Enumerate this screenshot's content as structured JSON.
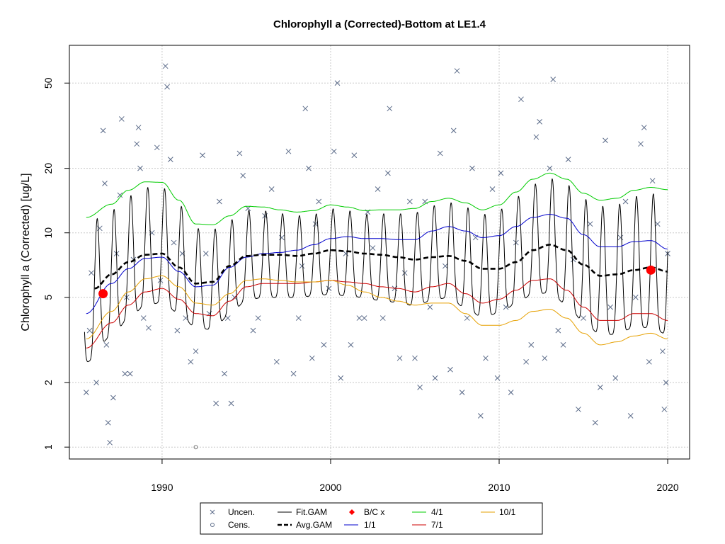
{
  "chart_data": {
    "type": "line",
    "title": "Chlorophyll a (Corrected)-Bottom at LE1.4",
    "ylabel": "Chlorophyll a (Corrected) [ug/L]",
    "xlabel": "",
    "xlim": [
      1984.5,
      2021.3
    ],
    "ylim": [
      0.88,
      75
    ],
    "ylog": true,
    "grid": true,
    "x_ticks": [
      1990,
      2000,
      2010,
      2020
    ],
    "y_ticks": [
      1,
      2,
      5,
      10,
      20,
      50
    ],
    "legend_position": "bottom-center",
    "legend": [
      {
        "key": "uncen",
        "label": "Uncen."
      },
      {
        "key": "cens",
        "label": "Cens."
      },
      {
        "key": "fit",
        "label": "Fit.GAM"
      },
      {
        "key": "avg",
        "label": "Avg.GAM"
      },
      {
        "key": "bc",
        "label": "B/C x"
      },
      {
        "key": "p11",
        "label": "1/1"
      },
      {
        "key": "p41",
        "label": "4/1"
      },
      {
        "key": "p71",
        "label": "7/1"
      },
      {
        "key": "p101",
        "label": "10/1"
      }
    ],
    "colors": {
      "uncen": "#5a6a88",
      "fit": "#000000",
      "avg": "#000000",
      "bc": "#ff0000",
      "p11": "#0000cc",
      "p41": "#00cc00",
      "p71": "#cc0000",
      "p101": "#e6a000"
    },
    "series": [
      {
        "key": "avg",
        "name": "Avg.GAM",
        "x": [
          1986,
          1987,
          1988,
          1989,
          1990,
          1991,
          1992,
          1993,
          1994,
          1995,
          1996,
          1997,
          1998,
          1999,
          2000,
          2001,
          2002,
          2003,
          2004,
          2005,
          2006,
          2007,
          2008,
          2009,
          2010,
          2011,
          2012,
          2013,
          2014,
          2015,
          2016,
          2017,
          2018,
          2019,
          2020
        ],
        "y": [
          5.5,
          6.4,
          7.3,
          7.9,
          8.0,
          6.9,
          5.8,
          5.9,
          7.0,
          7.8,
          7.9,
          7.9,
          7.8,
          8.0,
          8.3,
          8.2,
          8.0,
          7.9,
          7.7,
          7.5,
          7.7,
          7.8,
          7.4,
          6.8,
          6.8,
          7.3,
          8.3,
          8.8,
          8.3,
          7.1,
          6.3,
          6.4,
          6.7,
          6.9,
          6.6
        ]
      },
      {
        "key": "p11",
        "name": "1/1",
        "x": [
          1985.5,
          1987,
          1988,
          1989,
          1990,
          1991,
          1992,
          1993,
          1994,
          1995,
          1996,
          1997,
          1998,
          1999,
          2000,
          2001,
          2002,
          2003,
          2004,
          2005,
          2006,
          2007,
          2008,
          2009,
          2010,
          2011,
          2012,
          2013,
          2014,
          2015,
          2016,
          2017,
          2018,
          2019,
          2020
        ],
        "y": [
          4.2,
          5.8,
          6.8,
          7.6,
          7.7,
          6.6,
          5.6,
          5.7,
          6.9,
          7.7,
          8.0,
          8.1,
          8.3,
          8.8,
          9.4,
          9.6,
          9.4,
          9.4,
          9.3,
          9.3,
          10.2,
          10.7,
          10.2,
          9.5,
          9.7,
          10.7,
          11.8,
          12.2,
          11.7,
          9.8,
          8.6,
          8.6,
          9.1,
          9.2,
          8.4
        ]
      },
      {
        "key": "p41",
        "name": "4/1",
        "x": [
          1985.5,
          1987,
          1988,
          1989,
          1990,
          1991,
          1992,
          1993,
          1994,
          1995,
          1996,
          1997,
          1998,
          1999,
          2000,
          2001,
          2002,
          2003,
          2004,
          2005,
          2006,
          2007,
          2008,
          2009,
          2010,
          2011,
          2012,
          2013,
          2014,
          2015,
          2016,
          2017,
          2018,
          2019,
          2020
        ],
        "y": [
          11.8,
          13.6,
          15.8,
          17.3,
          17.2,
          14.2,
          11.0,
          10.9,
          12.0,
          13.3,
          13.2,
          12.8,
          12.5,
          12.7,
          13.5,
          13.2,
          12.7,
          12.8,
          12.8,
          13.0,
          14.0,
          14.5,
          13.8,
          12.8,
          13.5,
          15.5,
          17.8,
          19.0,
          17.8,
          15.3,
          14.2,
          14.5,
          15.8,
          16.3,
          15.9
        ]
      },
      {
        "key": "p71",
        "name": "7/1",
        "x": [
          1985.5,
          1987,
          1988,
          1989,
          1990,
          1991,
          1992,
          1993,
          1994,
          1995,
          1996,
          1997,
          1998,
          1999,
          2000,
          2001,
          2002,
          2003,
          2004,
          2005,
          2006,
          2007,
          2008,
          2009,
          2010,
          2011,
          2012,
          2013,
          2014,
          2015,
          2016,
          2017,
          2018,
          2019,
          2020
        ],
        "y": [
          2.9,
          3.8,
          4.6,
          5.3,
          5.5,
          4.9,
          4.2,
          4.1,
          4.8,
          5.6,
          5.8,
          5.8,
          5.8,
          5.9,
          6.0,
          5.9,
          5.8,
          5.6,
          5.5,
          5.3,
          5.6,
          5.8,
          5.2,
          4.7,
          4.9,
          5.4,
          6.0,
          6.1,
          5.4,
          4.5,
          3.9,
          3.9,
          4.2,
          4.2,
          3.9
        ]
      },
      {
        "key": "p101",
        "name": "10/1",
        "x": [
          1985.5,
          1987,
          1988,
          1989,
          1990,
          1991,
          1992,
          1993,
          1994,
          1995,
          1996,
          1997,
          1998,
          1999,
          2000,
          2001,
          2002,
          2003,
          2004,
          2005,
          2006,
          2007,
          2008,
          2009,
          2010,
          2011,
          2012,
          2013,
          2014,
          2015,
          2016,
          2017,
          2018,
          2019,
          2020
        ],
        "y": [
          3.2,
          4.3,
          5.3,
          6.1,
          6.3,
          5.6,
          4.7,
          4.6,
          5.2,
          6.0,
          6.1,
          6.0,
          5.9,
          5.9,
          6.0,
          5.7,
          5.3,
          5.0,
          4.8,
          4.6,
          4.7,
          4.7,
          4.2,
          3.7,
          3.7,
          3.9,
          4.3,
          4.4,
          4.0,
          3.4,
          3.0,
          3.1,
          3.3,
          3.4,
          3.2
        ]
      }
    ],
    "fit_gam": {
      "name": "Fit.GAM",
      "x_start": 1985.4,
      "x_end": 2020.0,
      "step": 0.02,
      "peak_phase": 0.15,
      "trough_phase": 0.65,
      "upper_envelope_key": "p41",
      "lower_envelope_key": "p71",
      "note_source": "seasonal oscillation between 4/1 and 7/1 curves"
    },
    "bc_points": [
      {
        "x": 1986.5,
        "y": 5.2
      },
      {
        "x": 2019.0,
        "y": 6.7
      }
    ],
    "censored_points": [
      {
        "x": 1992.0,
        "y": 1.0
      }
    ],
    "uncensored_points": [
      {
        "x": 1985.5,
        "y": 1.8
      },
      {
        "x": 1985.7,
        "y": 3.5
      },
      {
        "x": 1985.8,
        "y": 6.5
      },
      {
        "x": 1986.1,
        "y": 2.0
      },
      {
        "x": 1986.3,
        "y": 10.5
      },
      {
        "x": 1986.5,
        "y": 30.0
      },
      {
        "x": 1986.6,
        "y": 17.0
      },
      {
        "x": 1986.7,
        "y": 3.0
      },
      {
        "x": 1986.8,
        "y": 1.3
      },
      {
        "x": 1986.9,
        "y": 1.05
      },
      {
        "x": 1987.1,
        "y": 1.7
      },
      {
        "x": 1987.3,
        "y": 8.0
      },
      {
        "x": 1987.5,
        "y": 15.0
      },
      {
        "x": 1987.6,
        "y": 34.0
      },
      {
        "x": 1987.8,
        "y": 2.2
      },
      {
        "x": 1987.9,
        "y": 5.0
      },
      {
        "x": 1988.1,
        "y": 2.2
      },
      {
        "x": 1988.3,
        "y": 7.5
      },
      {
        "x": 1988.5,
        "y": 26.0
      },
      {
        "x": 1988.6,
        "y": 31.0
      },
      {
        "x": 1988.7,
        "y": 20.0
      },
      {
        "x": 1988.9,
        "y": 4.0
      },
      {
        "x": 1989.2,
        "y": 3.6
      },
      {
        "x": 1989.4,
        "y": 10.0
      },
      {
        "x": 1989.7,
        "y": 25.0
      },
      {
        "x": 1989.9,
        "y": 6.0
      },
      {
        "x": 1990.2,
        "y": 60.0
      },
      {
        "x": 1990.3,
        "y": 48.0
      },
      {
        "x": 1990.5,
        "y": 22.0
      },
      {
        "x": 1990.7,
        "y": 9.0
      },
      {
        "x": 1990.9,
        "y": 3.5
      },
      {
        "x": 1991.2,
        "y": 8.0
      },
      {
        "x": 1991.4,
        "y": 4.0
      },
      {
        "x": 1991.7,
        "y": 2.5
      },
      {
        "x": 1992.0,
        "y": 2.8
      },
      {
        "x": 1992.4,
        "y": 23.0
      },
      {
        "x": 1992.6,
        "y": 8.0
      },
      {
        "x": 1992.8,
        "y": 4.2
      },
      {
        "x": 1993.2,
        "y": 1.6
      },
      {
        "x": 1993.4,
        "y": 14.0
      },
      {
        "x": 1993.7,
        "y": 2.2
      },
      {
        "x": 1993.9,
        "y": 4.0
      },
      {
        "x": 1994.1,
        "y": 1.6
      },
      {
        "x": 1994.3,
        "y": 5.0
      },
      {
        "x": 1994.6,
        "y": 23.5
      },
      {
        "x": 1994.8,
        "y": 18.5
      },
      {
        "x": 1995.1,
        "y": 13.0
      },
      {
        "x": 1995.4,
        "y": 3.5
      },
      {
        "x": 1995.7,
        "y": 4.0
      },
      {
        "x": 1996.1,
        "y": 12.0
      },
      {
        "x": 1996.5,
        "y": 16.0
      },
      {
        "x": 1996.8,
        "y": 2.5
      },
      {
        "x": 1997.1,
        "y": 9.5
      },
      {
        "x": 1997.5,
        "y": 24.0
      },
      {
        "x": 1997.8,
        "y": 2.2
      },
      {
        "x": 1998.1,
        "y": 4.0
      },
      {
        "x": 1998.3,
        "y": 7.0
      },
      {
        "x": 1998.5,
        "y": 38.0
      },
      {
        "x": 1998.7,
        "y": 20.0
      },
      {
        "x": 1998.9,
        "y": 2.6
      },
      {
        "x": 1999.1,
        "y": 11.0
      },
      {
        "x": 1999.3,
        "y": 14.0
      },
      {
        "x": 1999.6,
        "y": 3.0
      },
      {
        "x": 1999.9,
        "y": 5.5
      },
      {
        "x": 2000.2,
        "y": 24.0
      },
      {
        "x": 2000.4,
        "y": 50.0
      },
      {
        "x": 2000.6,
        "y": 2.1
      },
      {
        "x": 2000.9,
        "y": 8.0
      },
      {
        "x": 2001.2,
        "y": 3.0
      },
      {
        "x": 2001.4,
        "y": 23.0
      },
      {
        "x": 2001.7,
        "y": 4.0
      },
      {
        "x": 2002.0,
        "y": 4.0
      },
      {
        "x": 2002.2,
        "y": 12.5
      },
      {
        "x": 2002.5,
        "y": 8.5
      },
      {
        "x": 2002.8,
        "y": 16.0
      },
      {
        "x": 2003.1,
        "y": 4.0
      },
      {
        "x": 2003.4,
        "y": 19.0
      },
      {
        "x": 2003.5,
        "y": 38.0
      },
      {
        "x": 2003.8,
        "y": 5.5
      },
      {
        "x": 2004.1,
        "y": 2.6
      },
      {
        "x": 2004.4,
        "y": 6.5
      },
      {
        "x": 2004.7,
        "y": 14.0
      },
      {
        "x": 2005.0,
        "y": 2.6
      },
      {
        "x": 2005.3,
        "y": 1.9
      },
      {
        "x": 2005.6,
        "y": 14.0
      },
      {
        "x": 2005.9,
        "y": 4.5
      },
      {
        "x": 2006.2,
        "y": 2.1
      },
      {
        "x": 2006.5,
        "y": 23.5
      },
      {
        "x": 2006.8,
        "y": 7.0
      },
      {
        "x": 2007.1,
        "y": 2.3
      },
      {
        "x": 2007.3,
        "y": 30.0
      },
      {
        "x": 2007.5,
        "y": 57.0
      },
      {
        "x": 2007.8,
        "y": 1.8
      },
      {
        "x": 2008.1,
        "y": 4.0
      },
      {
        "x": 2008.4,
        "y": 20.0
      },
      {
        "x": 2008.6,
        "y": 9.5
      },
      {
        "x": 2008.9,
        "y": 1.4
      },
      {
        "x": 2009.2,
        "y": 2.6
      },
      {
        "x": 2009.6,
        "y": 16.0
      },
      {
        "x": 2009.9,
        "y": 2.1
      },
      {
        "x": 2010.1,
        "y": 19.0
      },
      {
        "x": 2010.4,
        "y": 4.5
      },
      {
        "x": 2010.7,
        "y": 1.8
      },
      {
        "x": 2011.0,
        "y": 9.0
      },
      {
        "x": 2011.3,
        "y": 42.0
      },
      {
        "x": 2011.6,
        "y": 2.5
      },
      {
        "x": 2011.9,
        "y": 3.0
      },
      {
        "x": 2012.2,
        "y": 28.0
      },
      {
        "x": 2012.4,
        "y": 33.0
      },
      {
        "x": 2012.7,
        "y": 2.6
      },
      {
        "x": 2013.0,
        "y": 20.0
      },
      {
        "x": 2013.2,
        "y": 52.0
      },
      {
        "x": 2013.5,
        "y": 3.5
      },
      {
        "x": 2013.8,
        "y": 3.0
      },
      {
        "x": 2014.1,
        "y": 22.0
      },
      {
        "x": 2014.4,
        "y": 7.5
      },
      {
        "x": 2014.7,
        "y": 1.5
      },
      {
        "x": 2015.0,
        "y": 4.0
      },
      {
        "x": 2015.4,
        "y": 11.0
      },
      {
        "x": 2015.7,
        "y": 1.3
      },
      {
        "x": 2016.0,
        "y": 1.9
      },
      {
        "x": 2016.3,
        "y": 27.0
      },
      {
        "x": 2016.6,
        "y": 4.5
      },
      {
        "x": 2016.9,
        "y": 2.1
      },
      {
        "x": 2017.2,
        "y": 9.5
      },
      {
        "x": 2017.5,
        "y": 14.0
      },
      {
        "x": 2017.8,
        "y": 1.4
      },
      {
        "x": 2018.1,
        "y": 5.0
      },
      {
        "x": 2018.4,
        "y": 26.0
      },
      {
        "x": 2018.6,
        "y": 31.0
      },
      {
        "x": 2018.9,
        "y": 2.5
      },
      {
        "x": 2019.1,
        "y": 17.5
      },
      {
        "x": 2019.4,
        "y": 11.0
      },
      {
        "x": 2019.7,
        "y": 2.8
      },
      {
        "x": 2019.8,
        "y": 1.5
      },
      {
        "x": 2019.9,
        "y": 2.0
      },
      {
        "x": 2020.0,
        "y": 8.0
      }
    ]
  }
}
